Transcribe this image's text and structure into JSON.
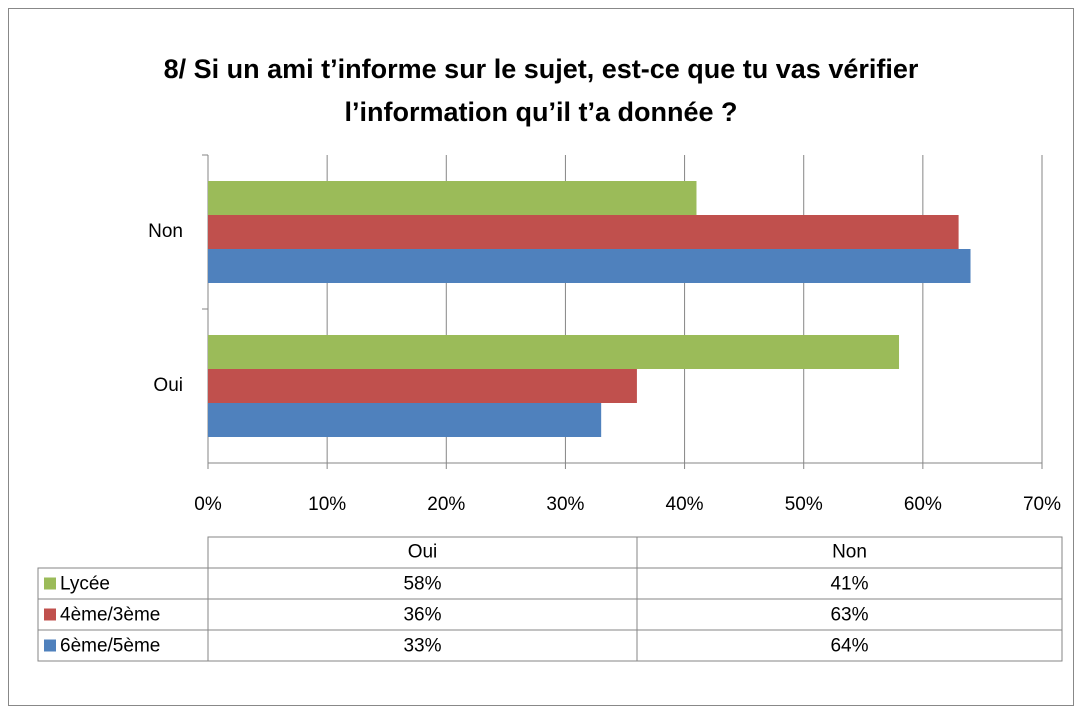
{
  "chart_data": {
    "type": "bar",
    "orientation": "horizontal",
    "title": "8/ Si un ami t’informe sur le sujet, est-ce que tu vas vérifier l’information qu’il t’a donnée ?",
    "categories": [
      "Oui",
      "Non"
    ],
    "series": [
      {
        "name": "Lycée",
        "color": "#9bbb59",
        "values": [
          58,
          41
        ],
        "value_labels": [
          "58%",
          "41%"
        ]
      },
      {
        "name": "4ème/3ème",
        "color": "#c0504d",
        "values": [
          36,
          63
        ],
        "value_labels": [
          "36%",
          "63%"
        ]
      },
      {
        "name": "6ème/5ème",
        "color": "#4f81bd",
        "values": [
          33,
          64
        ],
        "value_labels": [
          "33%",
          "64%"
        ]
      }
    ],
    "xlim": [
      0,
      70
    ],
    "xticks": [
      {
        "value": 0,
        "label": "0%"
      },
      {
        "value": 10,
        "label": "10%"
      },
      {
        "value": 20,
        "label": "20%"
      },
      {
        "value": 30,
        "label": "30%"
      },
      {
        "value": 40,
        "label": "40%"
      },
      {
        "value": 50,
        "label": "50%"
      },
      {
        "value": 60,
        "label": "60%"
      },
      {
        "value": 70,
        "label": "70%"
      }
    ],
    "grid": true
  }
}
